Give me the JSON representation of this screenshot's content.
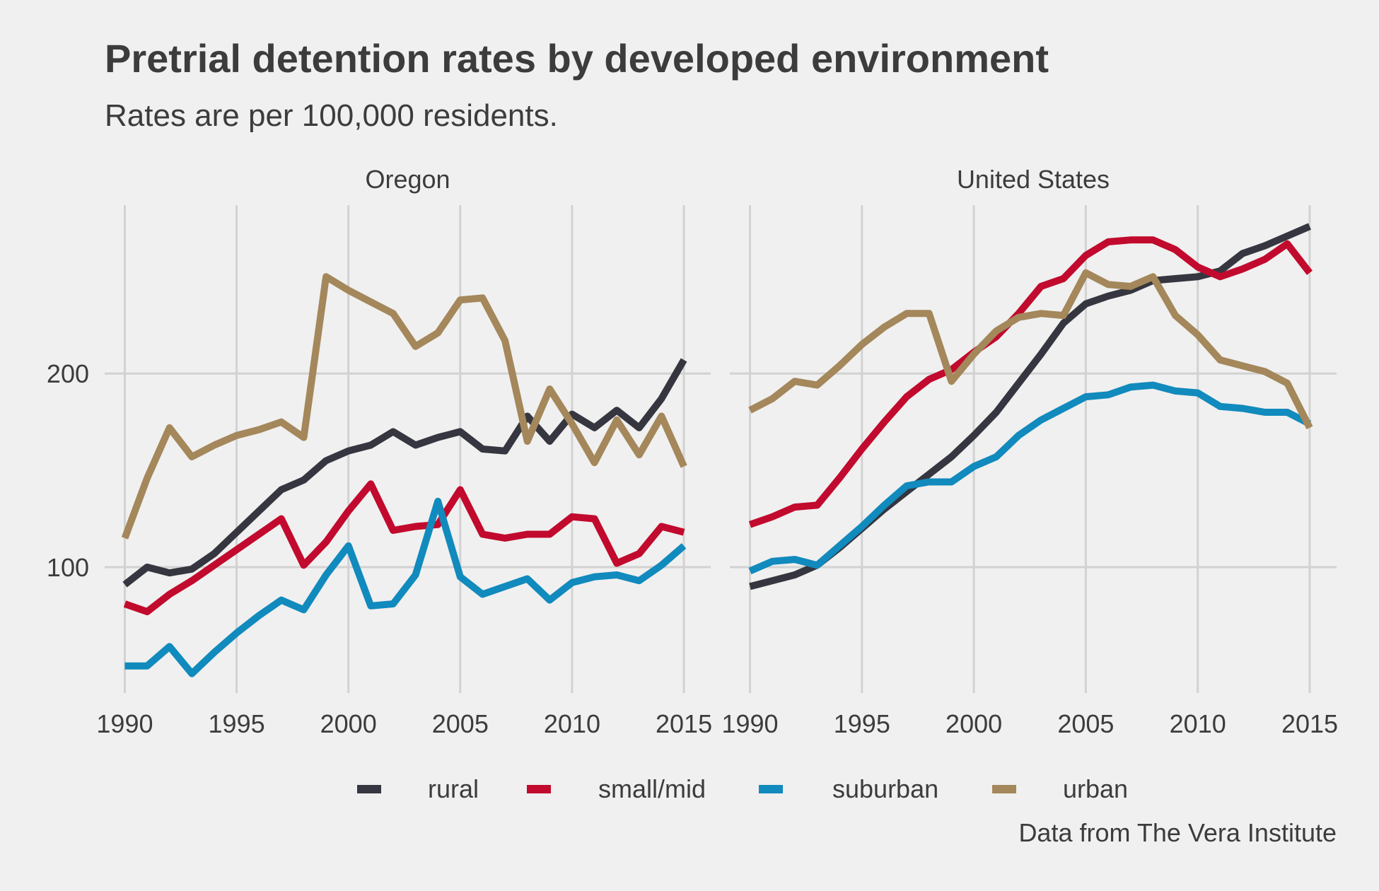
{
  "chart_data": {
    "type": "line",
    "title": "Pretrial detention rates by developed environment",
    "subtitle": "Rates are per 100,000 residents.",
    "caption": "Data from The Vera Institute",
    "x_ticks": [
      1990,
      1995,
      2000,
      2005,
      2010,
      2015
    ],
    "y_ticks": [
      100,
      200
    ],
    "xlim": [
      1989.1,
      2016.2
    ],
    "ylim": [
      35,
      287
    ],
    "grid": true,
    "legend_position": "bottom",
    "colors": {
      "rural": "#35363f",
      "small/mid": "#c10a2d",
      "suburban": "#118abd",
      "urban": "#a4875a"
    },
    "legend": [
      "rural",
      "small/mid",
      "suburban",
      "urban"
    ],
    "x": [
      1990,
      1991,
      1992,
      1993,
      1994,
      1995,
      1996,
      1997,
      1998,
      1999,
      2000,
      2001,
      2002,
      2003,
      2004,
      2005,
      2006,
      2007,
      2008,
      2009,
      2010,
      2011,
      2012,
      2013,
      2014,
      2015
    ],
    "panels": [
      {
        "name": "Oregon",
        "series": [
          {
            "name": "rural",
            "values": [
              91,
              100,
              97,
              99,
              107,
              118,
              129,
              140,
              145,
              155,
              160,
              163,
              170,
              163,
              167,
              170,
              161,
              160,
              178,
              165,
              179,
              172,
              181,
              172,
              187,
              207
            ]
          },
          {
            "name": "small/mid",
            "values": [
              81,
              77,
              86,
              93,
              101,
              109,
              117,
              125,
              101,
              113,
              129,
              143,
              119,
              121,
              122,
              140,
              117,
              115,
              117,
              117,
              126,
              125,
              102,
              107,
              121,
              118
            ]
          },
          {
            "name": "suburban",
            "values": [
              49,
              49,
              59,
              45,
              56,
              66,
              75,
              83,
              78,
              96,
              111,
              80,
              81,
              96,
              134,
              95,
              86,
              90,
              94,
              83,
              92,
              95,
              96,
              93,
              101,
              111
            ]
          },
          {
            "name": "urban",
            "values": [
              115,
              146,
              172,
              157,
              163,
              168,
              171,
              175,
              167,
              250,
              243,
              237,
              231,
              214,
              221,
              238,
              239,
              217,
              165,
              192,
              174,
              154,
              176,
              158,
              178,
              152
            ]
          }
        ]
      },
      {
        "name": "United States",
        "series": [
          {
            "name": "rural",
            "values": [
              90,
              93,
              96,
              101,
              110,
              120,
              130,
              139,
              148,
              157,
              168,
              180,
              195,
              210,
              226,
              236,
              240,
              243,
              248,
              249,
              250,
              253,
              262,
              266,
              271,
              276
            ]
          },
          {
            "name": "small/mid",
            "values": [
              122,
              126,
              131,
              132,
              146,
              161,
              175,
              188,
              197,
              202,
              211,
              219,
              231,
              245,
              249,
              261,
              268,
              269,
              269,
              264,
              255,
              250,
              254,
              259,
              267,
              252
            ]
          },
          {
            "name": "suburban",
            "values": [
              98,
              103,
              104,
              101,
              111,
              121,
              132,
              142,
              144,
              144,
              152,
              157,
              168,
              176,
              182,
              188,
              189,
              193,
              194,
              191,
              190,
              183,
              182,
              180,
              180,
              174
            ]
          },
          {
            "name": "urban",
            "values": [
              181,
              187,
              196,
              194,
              204,
              215,
              224,
              231,
              231,
              196,
              210,
              222,
              229,
              231,
              230,
              252,
              246,
              245,
              250,
              230,
              220,
              207,
              204,
              201,
              195,
              172
            ]
          }
        ]
      }
    ]
  }
}
